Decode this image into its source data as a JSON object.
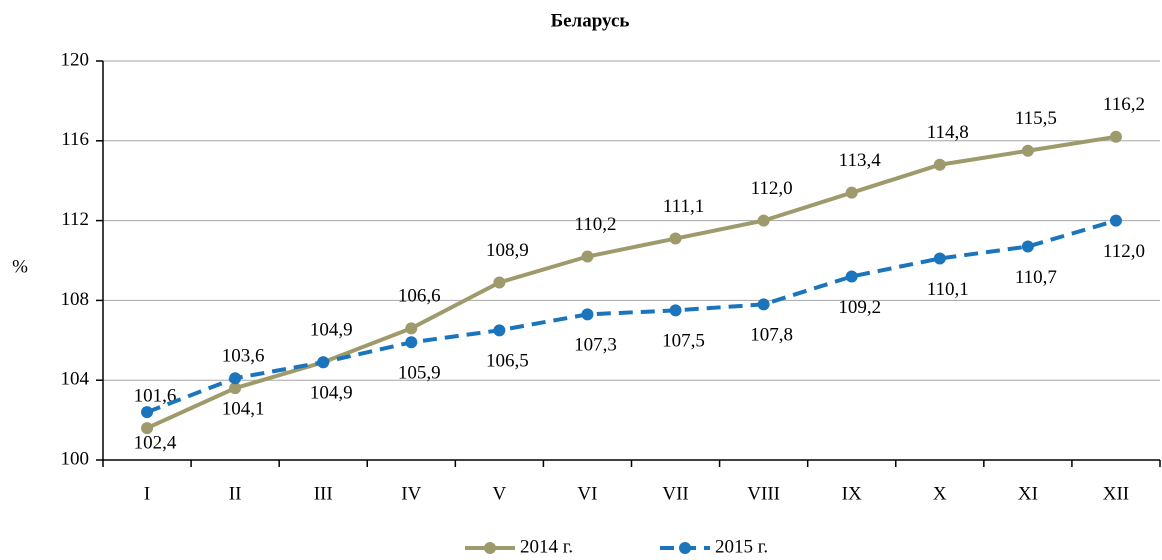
{
  "chart_data": {
    "type": "line",
    "title": "Беларусь",
    "ylabel": "%",
    "categories": [
      "I",
      "II",
      "III",
      "IV",
      "V",
      "VI",
      "VII",
      "VIII",
      "IX",
      "X",
      "XI",
      "XII"
    ],
    "series": [
      {
        "name": "2014 г.",
        "color": "#9e9a6c",
        "dashed": false,
        "values": [
          101.6,
          103.6,
          104.9,
          106.6,
          108.9,
          110.2,
          111.1,
          112.0,
          113.4,
          114.8,
          115.5,
          116.2
        ],
        "value_labels": [
          "101,6",
          "103,6",
          "104,9",
          "106,6",
          "108,9",
          "110,2",
          "111,1",
          "112,0",
          "113,4",
          "114,8",
          "115,5",
          "116,2"
        ]
      },
      {
        "name": "2015 г.",
        "color": "#1a75bc",
        "dashed": true,
        "values": [
          102.4,
          104.1,
          104.9,
          105.9,
          106.5,
          107.3,
          107.5,
          107.8,
          109.2,
          110.1,
          110.7,
          112.0
        ],
        "value_labels": [
          "102,4",
          "104,1",
          "104,9",
          "105,9",
          "106,5",
          "107,3",
          "107,5",
          "107,8",
          "109,2",
          "110,1",
          "110,7",
          "112,0"
        ]
      }
    ],
    "ylim": [
      100,
      120
    ],
    "yticks": [
      100,
      104,
      108,
      112,
      116,
      120
    ],
    "grid": true,
    "legend": "bottom"
  }
}
